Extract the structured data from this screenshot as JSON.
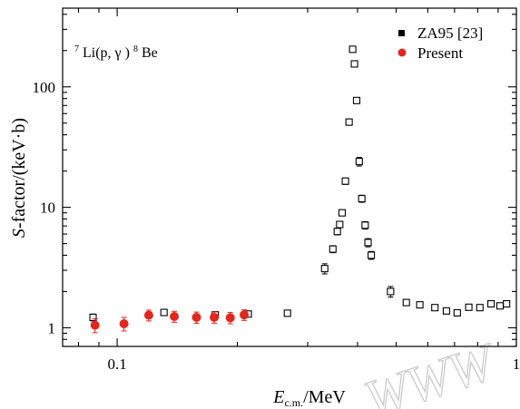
{
  "chart_data": {
    "type": "scatter",
    "annotation": {
      "base": "Li(p,",
      "gamma": "γ",
      "close": ")",
      "base2": "Be",
      "sup1": "7",
      "sup2": "8"
    },
    "xlabel": {
      "main": "E",
      "sub": "c.m.",
      "unit": "/MeV"
    },
    "ylabel": {
      "italic": "S",
      "rest": "-factor/(keV·b)"
    },
    "xscale": "log",
    "yscale": "log",
    "xlim": [
      0.073,
      1.0
    ],
    "ylim": [
      0.7,
      450
    ],
    "x_ticks": [
      {
        "value": 0.1,
        "label": "0.1"
      },
      {
        "value": 1,
        "label": "1"
      }
    ],
    "y_ticks": [
      {
        "value": 1,
        "label": "1"
      },
      {
        "value": 10,
        "label": "10"
      },
      {
        "value": 100,
        "label": "100"
      }
    ],
    "legend_position": "top-right",
    "series": [
      {
        "name": "ZA95 [23]",
        "marker": "open-square",
        "color": "#000000",
        "points": [
          {
            "x": 0.087,
            "y": 1.22,
            "err": 0.08
          },
          {
            "x": 0.131,
            "y": 1.34,
            "err": 0.06
          },
          {
            "x": 0.176,
            "y": 1.28,
            "err": 0.06
          },
          {
            "x": 0.213,
            "y": 1.3,
            "err": 0.06
          },
          {
            "x": 0.267,
            "y": 1.32,
            "err": 0.06
          },
          {
            "x": 0.331,
            "y": 3.1,
            "err": 0.3
          },
          {
            "x": 0.347,
            "y": 4.5,
            "err": 0.3
          },
          {
            "x": 0.356,
            "y": 6.3,
            "err": 0.4
          },
          {
            "x": 0.361,
            "y": 7.2,
            "err": 0.4
          },
          {
            "x": 0.366,
            "y": 9.0,
            "err": 0.5
          },
          {
            "x": 0.373,
            "y": 16.5,
            "err": 1.0
          },
          {
            "x": 0.381,
            "y": 51,
            "err": 3
          },
          {
            "x": 0.389,
            "y": 205,
            "err": 10
          },
          {
            "x": 0.393,
            "y": 155,
            "err": 8
          },
          {
            "x": 0.398,
            "y": 77,
            "err": 4
          },
          {
            "x": 0.404,
            "y": 24,
            "err": 2
          },
          {
            "x": 0.41,
            "y": 11.8,
            "err": 0.8
          },
          {
            "x": 0.418,
            "y": 7.1,
            "err": 0.5
          },
          {
            "x": 0.425,
            "y": 5.1,
            "err": 0.4
          },
          {
            "x": 0.433,
            "y": 4.0,
            "err": 0.3
          },
          {
            "x": 0.484,
            "y": 2.0,
            "err": 0.2
          },
          {
            "x": 0.53,
            "y": 1.62,
            "err": 0.08
          },
          {
            "x": 0.573,
            "y": 1.55,
            "err": 0.08
          },
          {
            "x": 0.625,
            "y": 1.47,
            "err": 0.07
          },
          {
            "x": 0.668,
            "y": 1.38,
            "err": 0.07
          },
          {
            "x": 0.711,
            "y": 1.33,
            "err": 0.07
          },
          {
            "x": 0.76,
            "y": 1.48,
            "err": 0.07
          },
          {
            "x": 0.81,
            "y": 1.47,
            "err": 0.07
          },
          {
            "x": 0.864,
            "y": 1.58,
            "err": 0.08
          },
          {
            "x": 0.91,
            "y": 1.52,
            "err": 0.08
          },
          {
            "x": 0.945,
            "y": 1.58,
            "err": 0.08
          }
        ]
      },
      {
        "name": "Present",
        "marker": "filled-circle",
        "color": "#e0281e",
        "points": [
          {
            "x": 0.088,
            "y": 1.05,
            "err": 0.14
          },
          {
            "x": 0.104,
            "y": 1.08,
            "err": 0.14
          },
          {
            "x": 0.12,
            "y": 1.27,
            "err": 0.13
          },
          {
            "x": 0.139,
            "y": 1.24,
            "err": 0.13
          },
          {
            "x": 0.158,
            "y": 1.22,
            "err": 0.13
          },
          {
            "x": 0.175,
            "y": 1.22,
            "err": 0.13
          },
          {
            "x": 0.192,
            "y": 1.21,
            "err": 0.13
          },
          {
            "x": 0.208,
            "y": 1.28,
            "err": 0.13
          }
        ]
      }
    ]
  },
  "watermark": "WWW"
}
